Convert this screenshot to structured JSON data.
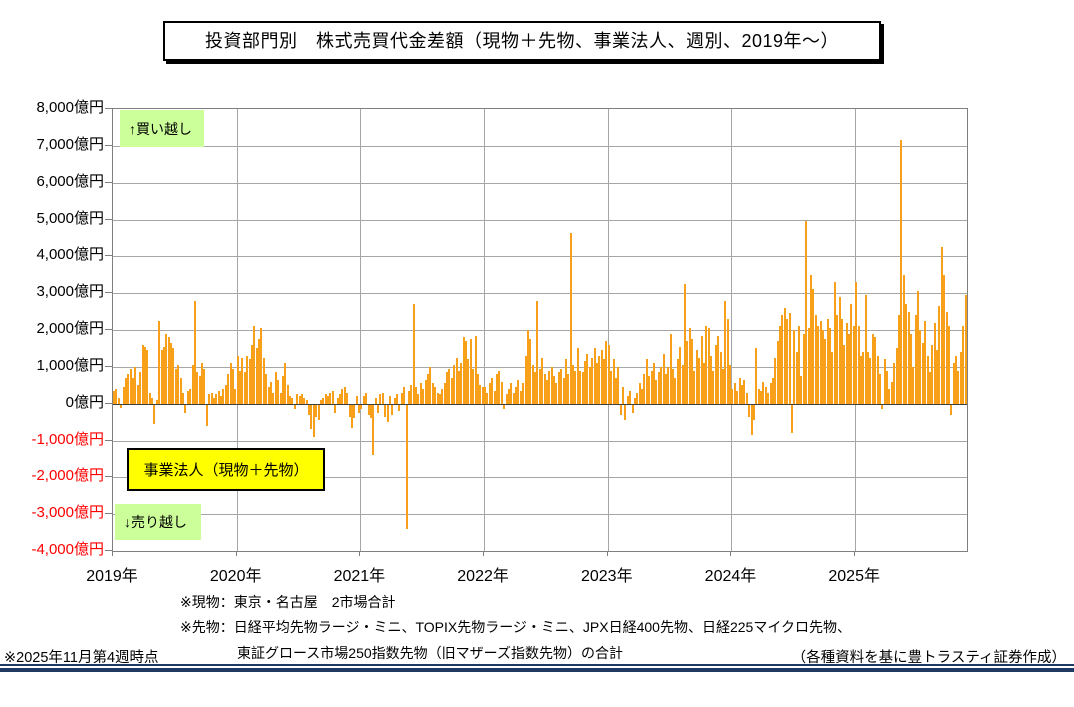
{
  "title": "投資部門別　株式売買代金差額（現物＋先物、事業法人、週別、2019年～）",
  "annotations": {
    "buy_label": "↑買い越し",
    "sell_label": "↓売り越し",
    "series_label": "事業法人（現物＋先物）"
  },
  "footnotes": {
    "line1": "※現物：東京・名古屋　2市場合計",
    "line2": "※先物：日経平均先物ラージ・ミニ、TOPIX先物ラージ・ミニ、JPX日経400先物、日経225マイクロ先物、",
    "line3": "東証グロース市場250指数先物（旧マザーズ指数先物）の合計"
  },
  "footer": {
    "as_of": "※2025年11月第4週時点",
    "credit": "（各種資料を基に豊トラスティ証券作成）"
  },
  "colors": {
    "bar": "#f9a01b",
    "positive_tick_label": "#000000",
    "negative_tick_label": "#ff0000",
    "gridline": "#a6a6a6",
    "plot_border": "#7f7f7f",
    "green_box": "#ccff99",
    "yellow_box": "#ffff00",
    "navy_rule": "#1f3864"
  },
  "chart_data": {
    "type": "bar",
    "title": "投資部門別　株式売買代金差額（現物＋先物、事業法人、週別、2019年～）",
    "series_name": "事業法人（現物＋先物）",
    "unit": "億円",
    "ylim": [
      -4000,
      8000
    ],
    "y_tick_step": 1000,
    "y_ticks": [
      "8,000億円",
      "7,000億円",
      "6,000億円",
      "5,000億円",
      "4,000億円",
      "3,000億円",
      "2,000億円",
      "1,000億円",
      "0億円",
      "-1,000億円",
      "-2,000億円",
      "-3,000億円",
      "-4,000億円"
    ],
    "grid": true,
    "legend_position": "none",
    "x_year_labels": [
      "2019年",
      "2020年",
      "2021年",
      "2022年",
      "2023年",
      "2024年",
      "2025年"
    ],
    "weekly_values_by_year": {
      "2019": [
        350,
        400,
        150,
        -120,
        450,
        700,
        800,
        950,
        700,
        1000,
        500,
        850,
        1600,
        1550,
        1450,
        300,
        150,
        -550,
        100,
        2250,
        1450,
        1550,
        1900,
        1800,
        1650,
        1500,
        950,
        1050,
        700,
        300,
        -250,
        350,
        400,
        1050,
        2800,
        850,
        750,
        1100,
        950,
        -600,
        250,
        300,
        150,
        250,
        350,
        200,
        400,
        500,
        800,
        1100,
        950,
        400
      ],
      "2020": [
        1300,
        900,
        1250,
        850,
        1300,
        1200,
        1600,
        2100,
        1500,
        1750,
        2050,
        1250,
        800,
        450,
        600,
        300,
        850,
        650,
        300,
        750,
        1100,
        500,
        200,
        150,
        -150,
        250,
        200,
        250,
        150,
        100,
        -300,
        -700,
        -900,
        -350,
        -450,
        100,
        150,
        250,
        200,
        300,
        350,
        -250,
        150,
        250,
        400,
        450,
        300,
        -350,
        -650,
        -400,
        200,
        -250
      ],
      "2021": [
        -150,
        200,
        300,
        -300,
        -400,
        -1400,
        150,
        -250,
        250,
        300,
        -350,
        -500,
        200,
        -300,
        150,
        250,
        -200,
        300,
        450,
        -3400,
        350,
        500,
        2700,
        450,
        250,
        550,
        400,
        650,
        800,
        1000,
        550,
        450,
        300,
        250,
        400,
        550,
        850,
        950,
        700,
        1050,
        1250,
        900,
        1100,
        1800,
        1700,
        1200,
        1750,
        950,
        1850,
        800,
        500,
        450
      ],
      "2022": [
        450,
        300,
        550,
        700,
        350,
        800,
        900,
        600,
        -150,
        250,
        400,
        550,
        300,
        450,
        650,
        350,
        550,
        1300,
        2000,
        1750,
        1050,
        850,
        2800,
        950,
        1250,
        800,
        650,
        900,
        1000,
        750,
        550,
        850,
        950,
        700,
        1200,
        800,
        4620,
        1050,
        900,
        1500,
        900,
        850,
        1150,
        1350,
        1000,
        1250,
        1500,
        1100,
        1300,
        1450,
        1200,
        1700
      ],
      "2023": [
        1600,
        900,
        1200,
        700,
        1000,
        -300,
        450,
        -450,
        200,
        350,
        -250,
        150,
        300,
        550,
        400,
        800,
        1200,
        750,
        900,
        1100,
        650,
        850,
        1000,
        1350,
        800,
        1000,
        1900,
        950,
        700,
        1200,
        1550,
        1050,
        3250,
        1700,
        2050,
        1750,
        900,
        1450,
        1250,
        1850,
        1100,
        2100,
        2050,
        1300,
        900,
        1600,
        1850,
        1400,
        950,
        2800,
        2300,
        1050
      ],
      "2024": [
        400,
        550,
        350,
        700,
        500,
        650,
        300,
        -350,
        -850,
        -450,
        1500,
        400,
        350,
        600,
        450,
        300,
        550,
        700,
        1250,
        1700,
        2100,
        2400,
        2600,
        2300,
        2450,
        -800,
        2000,
        1400,
        2100,
        750,
        1900,
        4950,
        2050,
        3500,
        3100,
        2400,
        2100,
        2250,
        2000,
        1750,
        2300,
        2050,
        1400,
        3300,
        2400,
        2900,
        2300,
        1600,
        2200,
        1900,
        2700,
        2100
      ],
      "2025": [
        3300,
        2100,
        1300,
        1400,
        2950,
        1400,
        1250,
        1900,
        1800,
        1300,
        800,
        -150,
        1200,
        900,
        400,
        600,
        1100,
        1500,
        2400,
        7150,
        3500,
        2700,
        2500,
        1900,
        1000,
        2400,
        3050,
        2000,
        1650,
        2250,
        1300,
        850,
        1600,
        2200,
        1450,
        2650,
        4250,
        3500,
        2500,
        2100,
        -300,
        1100,
        1300,
        900,
        1400,
        2100,
        2950
      ]
    }
  }
}
